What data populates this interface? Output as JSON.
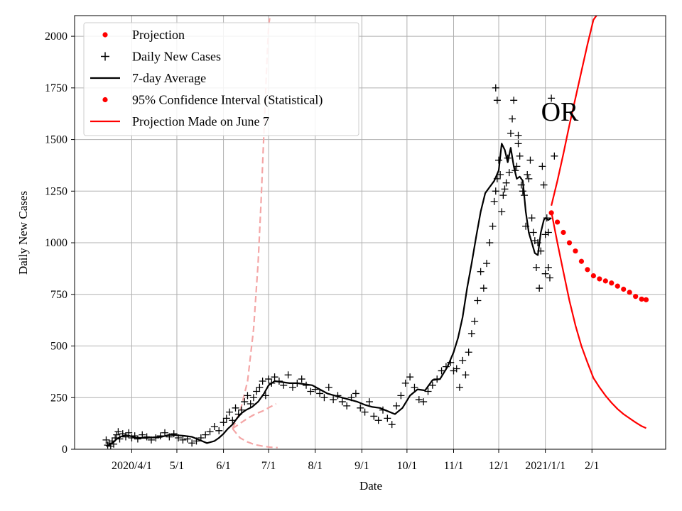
{
  "chart_data": {
    "type": "line",
    "title": "",
    "xlabel": "Date",
    "ylabel": "Daily New Cases",
    "annotation": "OR",
    "grid": true,
    "legend_position": "top-left",
    "ylim": [
      0,
      2100
    ],
    "xlim_day": [
      -38,
      355
    ],
    "x_ticks": [
      {
        "day": 0,
        "label": "2020/4/1"
      },
      {
        "day": 30,
        "label": "5/1"
      },
      {
        "day": 61,
        "label": "6/1"
      },
      {
        "day": 91,
        "label": "7/1"
      },
      {
        "day": 122,
        "label": "8/1"
      },
      {
        "day": 153,
        "label": "9/1"
      },
      {
        "day": 183,
        "label": "10/1"
      },
      {
        "day": 214,
        "label": "11/1"
      },
      {
        "day": 244,
        "label": "12/1"
      },
      {
        "day": 275,
        "label": "2021/1/1"
      },
      {
        "day": 306,
        "label": "2/1"
      }
    ],
    "y_ticks": [
      0,
      250,
      500,
      750,
      1000,
      1250,
      1500,
      1750,
      2000
    ],
    "legend": [
      {
        "label": "Projection",
        "marker": "dot",
        "color": "#ff0000"
      },
      {
        "label": "Daily New Cases",
        "marker": "plus",
        "color": "#000000"
      },
      {
        "label": "7-day Average",
        "marker": "line",
        "color": "#000000"
      },
      {
        "label": "95% Confidence Interval (Statistical)",
        "marker": "dot",
        "color": "#ff0000"
      },
      {
        "label": "Projection Made on June 7",
        "marker": "line",
        "color": "#ff0000"
      }
    ],
    "colors": {
      "projection": "#ff0000",
      "ci_line": "#ff0000",
      "old_projection": "#f4a6a6",
      "cases": "#000000",
      "average": "#000000",
      "grid": "#b0b0b0"
    },
    "series": [
      {
        "name": "7-day Average",
        "style": "line",
        "day": [
          -17,
          -15,
          -12,
          -10,
          -7,
          -4,
          -2,
          0,
          3,
          6,
          10,
          15,
          20,
          25,
          30,
          35,
          40,
          45,
          50,
          55,
          58,
          61,
          64,
          67,
          70,
          73,
          76,
          80,
          84,
          88,
          91,
          95,
          100,
          105,
          110,
          115,
          120,
          125,
          130,
          135,
          140,
          145,
          150,
          155,
          160,
          165,
          170,
          175,
          180,
          185,
          190,
          195,
          200,
          205,
          210,
          214,
          217,
          220,
          223,
          226,
          229,
          232,
          235,
          238,
          241,
          244,
          246,
          248,
          250,
          252,
          254,
          256,
          258,
          260,
          262,
          264,
          266,
          268,
          270,
          272,
          274,
          275,
          277,
          279
        ],
        "value": [
          15,
          22,
          35,
          50,
          62,
          68,
          66,
          62,
          56,
          55,
          55,
          58,
          60,
          70,
          68,
          65,
          60,
          45,
          30,
          40,
          55,
          75,
          100,
          120,
          150,
          175,
          190,
          205,
          230,
          270,
          310,
          330,
          325,
          320,
          320,
          315,
          310,
          290,
          270,
          260,
          250,
          240,
          230,
          215,
          205,
          200,
          185,
          170,
          200,
          260,
          290,
          285,
          335,
          340,
          400,
          470,
          540,
          640,
          780,
          900,
          1030,
          1150,
          1240,
          1270,
          1300,
          1350,
          1480,
          1450,
          1390,
          1460,
          1370,
          1310,
          1320,
          1300,
          1150,
          1050,
          1000,
          950,
          940,
          1050,
          1110,
          1120,
          1110,
          1120
        ]
      },
      {
        "name": "Projection",
        "style": "dots",
        "day": [
          279,
          283,
          287,
          291,
          295,
          299,
          303,
          307,
          311,
          315,
          319,
          323,
          327,
          331,
          335,
          339,
          342
        ],
        "value": [
          1145,
          1100,
          1050,
          1000,
          960,
          910,
          870,
          840,
          825,
          815,
          805,
          790,
          775,
          760,
          740,
          727,
          724
        ]
      },
      {
        "name": "95% Confidence Interval (Statistical) upper",
        "style": "line",
        "day": [
          279,
          283,
          287,
          291,
          295,
          299,
          303,
          307,
          309
        ],
        "value": [
          1180,
          1300,
          1430,
          1570,
          1700,
          1830,
          1960,
          2080,
          2100
        ]
      },
      {
        "name": "95% Confidence Interval (Statistical) lower",
        "style": "line",
        "day": [
          279,
          283,
          287,
          291,
          295,
          299,
          303,
          307,
          311,
          315,
          319,
          323,
          327,
          331,
          335,
          339,
          342
        ],
        "value": [
          1150,
          1000,
          860,
          720,
          600,
          500,
          420,
          345,
          300,
          260,
          225,
          195,
          170,
          150,
          130,
          112,
          102
        ]
      },
      {
        "name": "Projection Made on June 7 upper",
        "style": "dashed",
        "day": [
          67,
          72,
          77,
          81,
          84,
          86,
          88,
          90,
          91,
          92
        ],
        "value": [
          100,
          180,
          330,
          580,
          900,
          1200,
          1550,
          1900,
          2050,
          2100
        ]
      },
      {
        "name": "Projection Made on June 7 center",
        "style": "dashed",
        "day": [
          67,
          72,
          77,
          82,
          87,
          92,
          96
        ],
        "value": [
          100,
          125,
          150,
          170,
          185,
          205,
          220
        ]
      },
      {
        "name": "Projection Made on June 7 lower",
        "style": "dashed",
        "day": [
          67,
          72,
          77,
          82,
          87,
          92,
          97
        ],
        "value": [
          100,
          55,
          35,
          22,
          15,
          10,
          8
        ]
      },
      {
        "name": "Daily New Cases",
        "style": "plus",
        "day": [
          -17,
          -16,
          -15,
          -14,
          -13,
          -12,
          -11,
          -10,
          -9,
          -8,
          -6,
          -4,
          -2,
          0,
          2,
          4,
          7,
          10,
          13,
          16,
          19,
          22,
          25,
          28,
          31,
          34,
          37,
          40,
          43,
          46,
          49,
          52,
          55,
          58,
          61,
          63,
          65,
          67,
          69,
          71,
          73,
          75,
          77,
          79,
          81,
          83,
          85,
          87,
          89,
          91,
          93,
          95,
          98,
          101,
          104,
          107,
          110,
          113,
          116,
          119,
          122,
          125,
          128,
          131,
          134,
          137,
          140,
          143,
          146,
          149,
          152,
          155,
          158,
          161,
          164,
          167,
          170,
          173,
          176,
          179,
          182,
          185,
          188,
          191,
          194,
          197,
          200,
          203,
          206,
          209,
          212,
          214,
          216,
          218,
          220,
          222,
          224,
          226,
          228,
          230,
          232,
          234,
          236,
          238,
          240,
          241,
          242,
          243,
          244,
          245,
          246,
          247,
          248,
          249,
          250,
          251,
          252,
          253,
          254,
          255,
          256,
          257,
          258,
          259,
          260,
          261,
          262,
          263,
          264,
          265,
          266,
          267,
          268,
          269,
          270,
          271,
          272,
          273,
          274,
          275,
          276,
          277,
          278
        ],
        "value": [
          45,
          20,
          30,
          15,
          40,
          25,
          55,
          70,
          85,
          50,
          75,
          60,
          80,
          55,
          65,
          50,
          70,
          60,
          45,
          55,
          65,
          80,
          60,
          75,
          55,
          45,
          50,
          30,
          40,
          55,
          70,
          85,
          110,
          90,
          130,
          150,
          180,
          140,
          200,
          170,
          190,
          230,
          260,
          220,
          250,
          280,
          300,
          330,
          260,
          340,
          320,
          350,
          330,
          310,
          360,
          300,
          320,
          340,
          310,
          280,
          290,
          270,
          250,
          300,
          240,
          260,
          230,
          210,
          250,
          270,
          200,
          180,
          230,
          160,
          140,
          190,
          150,
          120,
          210,
          260,
          320,
          350,
          300,
          240,
          230,
          280,
          310,
          340,
          380,
          400,
          420,
          380,
          390,
          300,
          430,
          360,
          470,
          560,
          620,
          720,
          860,
          780,
          900,
          1000,
          1080,
          1200,
          1250,
          1310,
          1400,
          1330,
          1150,
          1230,
          1260,
          1290,
          1410,
          1340,
          1530,
          1600,
          1690,
          1350,
          1370,
          1480,
          1420,
          1280,
          1250,
          1230,
          1080,
          1330,
          1310,
          1400,
          1120,
          1050,
          1010,
          880,
          1000,
          780,
          960,
          1370,
          1280,
          850,
          1120,
          1050,
          830
        ]
      },
      {
        "name": "Daily New Cases extra",
        "style": "plus",
        "day": [
          242,
          243,
          257,
          275,
          277,
          279,
          281
        ],
        "value": [
          1750,
          1690,
          1520,
          1040,
          880,
          1700,
          1420
        ]
      }
    ]
  }
}
